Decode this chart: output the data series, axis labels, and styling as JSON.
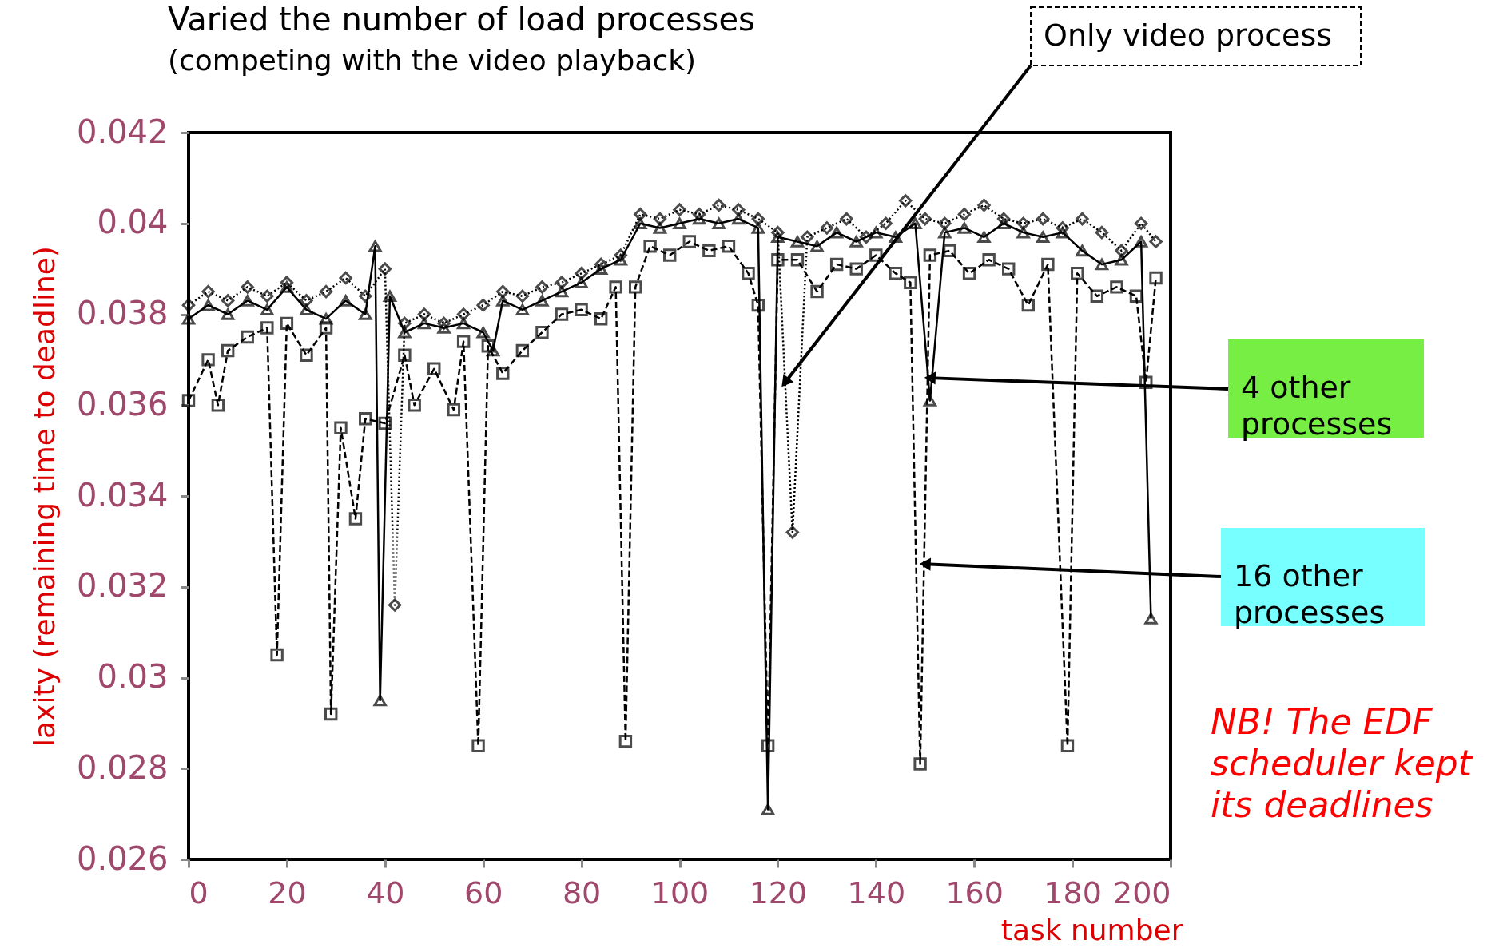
{
  "chart_data": {
    "type": "line",
    "title": "Varied the number of load processes",
    "subtitle": "(competing with the video playback)",
    "xlabel": "task number",
    "ylabel": "laxity (remaining time to deadline)",
    "xlim": [
      0,
      200
    ],
    "xticks": [
      0,
      20,
      40,
      60,
      80,
      100,
      120,
      140,
      160,
      180,
      200
    ],
    "ylim": [
      0.026,
      0.042
    ],
    "yticks": [
      0.026,
      0.028,
      0.03,
      0.032,
      0.034,
      0.036,
      0.038,
      0.04,
      0.042
    ],
    "grid": false,
    "series": [
      {
        "color": "#000000",
        "marker": "diamond",
        "line_style": "dotted",
        "x": [
          0,
          4,
          8,
          12,
          16,
          20,
          24,
          28,
          32,
          36,
          40,
          42,
          44,
          48,
          52,
          56,
          60,
          64,
          68,
          72,
          76,
          80,
          84,
          88,
          92,
          96,
          100,
          104,
          108,
          112,
          116,
          120,
          123,
          126,
          130,
          134,
          138,
          142,
          146,
          150,
          154,
          158,
          162,
          166,
          170,
          174,
          178,
          182,
          186,
          190,
          194,
          197
        ],
        "values": [
          0.0382,
          0.0385,
          0.0383,
          0.0386,
          0.0384,
          0.0387,
          0.0383,
          0.0385,
          0.0388,
          0.0384,
          0.039,
          0.0316,
          0.0378,
          0.038,
          0.0378,
          0.038,
          0.0382,
          0.0385,
          0.0384,
          0.0386,
          0.0387,
          0.0389,
          0.0391,
          0.0393,
          0.0402,
          0.0401,
          0.0403,
          0.0402,
          0.0404,
          0.0403,
          0.0401,
          0.0398,
          0.0332,
          0.0397,
          0.0399,
          0.0401,
          0.0397,
          0.04,
          0.0405,
          0.0401,
          0.04,
          0.0402,
          0.0404,
          0.0401,
          0.04,
          0.0401,
          0.0399,
          0.0401,
          0.0398,
          0.0394,
          0.04,
          0.0396
        ]
      },
      {
        "color": "#000000",
        "marker": "triangle",
        "line_style": "solid",
        "x": [
          0,
          4,
          8,
          12,
          16,
          20,
          24,
          28,
          32,
          36,
          38,
          39,
          41,
          44,
          48,
          52,
          56,
          60,
          62,
          64,
          68,
          72,
          76,
          80,
          84,
          88,
          92,
          96,
          100,
          104,
          108,
          112,
          116,
          118,
          120,
          124,
          128,
          132,
          136,
          140,
          144,
          148,
          151,
          154,
          158,
          162,
          166,
          170,
          174,
          178,
          182,
          186,
          190,
          194,
          196
        ],
        "values": [
          0.0379,
          0.0382,
          0.038,
          0.0383,
          0.0381,
          0.0386,
          0.0381,
          0.0379,
          0.0383,
          0.038,
          0.0395,
          0.0295,
          0.0384,
          0.0376,
          0.0378,
          0.0377,
          0.0378,
          0.0376,
          0.0372,
          0.0383,
          0.0381,
          0.0383,
          0.0385,
          0.0387,
          0.039,
          0.0392,
          0.04,
          0.0399,
          0.04,
          0.0401,
          0.04,
          0.0401,
          0.0399,
          0.0271,
          0.0397,
          0.0396,
          0.0395,
          0.0398,
          0.0396,
          0.0398,
          0.0397,
          0.04,
          0.0361,
          0.0398,
          0.0399,
          0.0397,
          0.04,
          0.0398,
          0.0397,
          0.0398,
          0.0394,
          0.0391,
          0.0392,
          0.0396,
          0.0313
        ]
      },
      {
        "color": "#000000",
        "marker": "square",
        "line_style": "dashed",
        "x": [
          0,
          4,
          6,
          8,
          12,
          16,
          18,
          20,
          24,
          28,
          29,
          31,
          34,
          36,
          40,
          44,
          46,
          50,
          54,
          56,
          59,
          61,
          64,
          68,
          72,
          76,
          80,
          84,
          87,
          89,
          91,
          94,
          98,
          102,
          106,
          110,
          114,
          116,
          118,
          120,
          124,
          128,
          132,
          136,
          140,
          144,
          147,
          149,
          151,
          155,
          159,
          163,
          167,
          171,
          175,
          179,
          181,
          185,
          189,
          193,
          195,
          197
        ],
        "values": [
          0.0361,
          0.037,
          0.036,
          0.0372,
          0.0375,
          0.0377,
          0.0305,
          0.0378,
          0.0371,
          0.0377,
          0.0292,
          0.0355,
          0.0335,
          0.0357,
          0.0356,
          0.0371,
          0.036,
          0.0368,
          0.0359,
          0.0374,
          0.0285,
          0.0373,
          0.0367,
          0.0372,
          0.0376,
          0.038,
          0.0381,
          0.0379,
          0.0386,
          0.0286,
          0.0386,
          0.0395,
          0.0393,
          0.0396,
          0.0394,
          0.0395,
          0.0389,
          0.0382,
          0.0285,
          0.0392,
          0.0392,
          0.0385,
          0.0391,
          0.039,
          0.0393,
          0.0389,
          0.0387,
          0.0281,
          0.0393,
          0.0394,
          0.0389,
          0.0392,
          0.039,
          0.0382,
          0.0391,
          0.0285,
          0.0389,
          0.0384,
          0.0386,
          0.0384,
          0.0365,
          0.0388
        ]
      }
    ],
    "annotations": [
      {
        "text": "Only video process",
        "x": 121.5,
        "y": 0.0365
      },
      {
        "text": "4 other processes",
        "x": 151,
        "y": 0.0366
      },
      {
        "text": "16 other processes",
        "x": 150,
        "y": 0.0325
      },
      "NB! The EDF scheduler kept its deadlines"
    ]
  }
}
